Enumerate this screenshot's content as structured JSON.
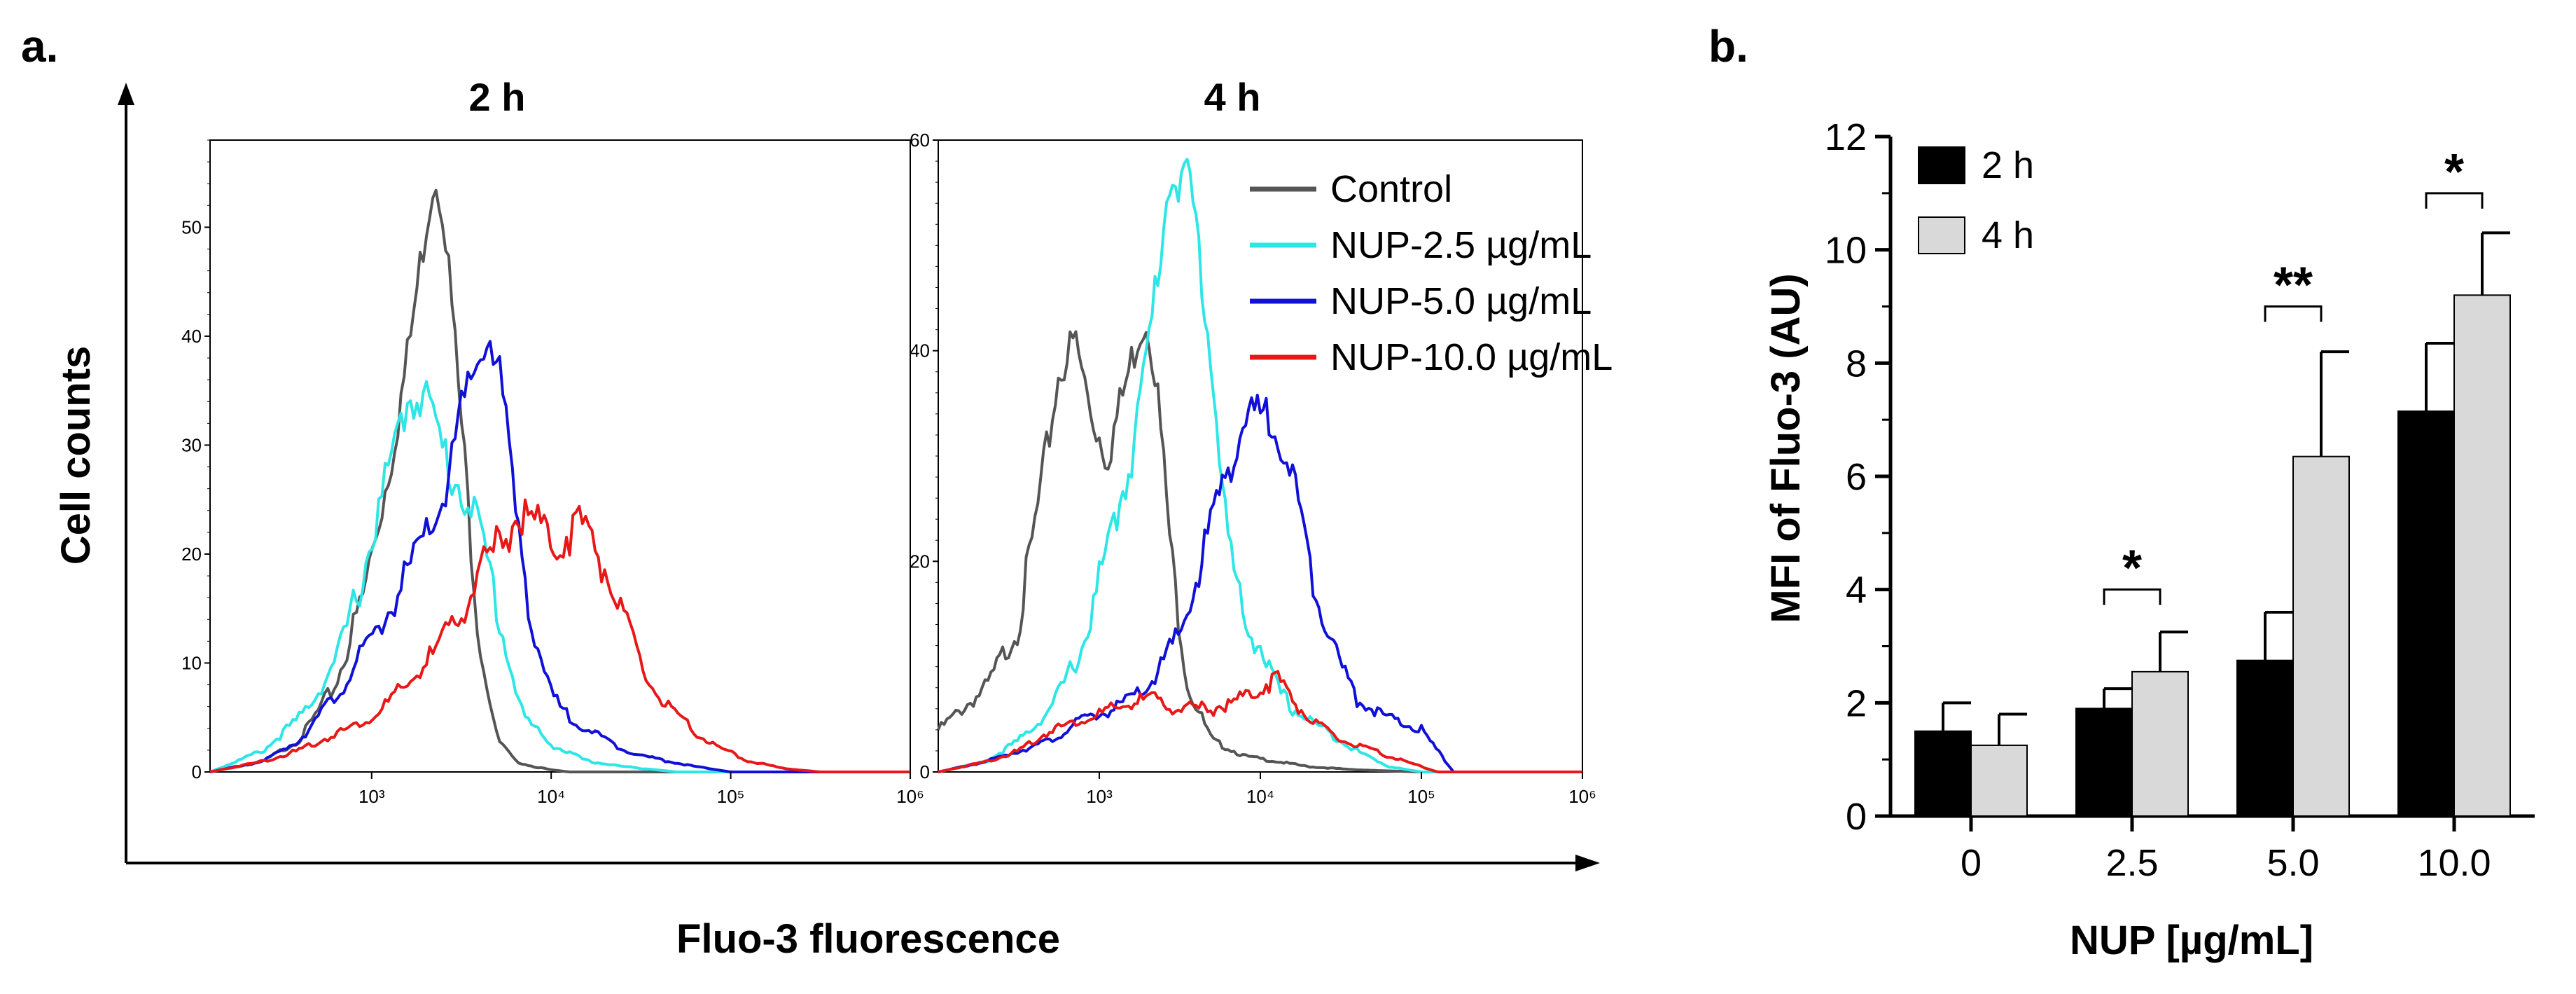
{
  "panel_a": {
    "label": "a.",
    "x_title": "Fluo-3 fluorescence",
    "y_title": "Cell counts",
    "legend": [
      {
        "label": "Control",
        "color": "#555555"
      },
      {
        "label": "NUP-2.5 µg/mL",
        "color": "#2ee6e6"
      },
      {
        "label": "NUP-5.0 µg/mL",
        "color": "#1010d8"
      },
      {
        "label": "NUP-10.0 µg/mL",
        "color": "#e81818"
      }
    ]
  },
  "chart_data": [
    {
      "type": "line",
      "title": "2 h",
      "xlabel": "Fluo-3 fluorescence",
      "ylabel": "Cell counts",
      "xscale": "log",
      "xlim_log10": [
        2.1,
        6.0
      ],
      "ylim": [
        0,
        58
      ],
      "xticks": [
        "10³",
        "10⁴",
        "10⁵",
        "10⁶"
      ],
      "xtick_exp": [
        3,
        4,
        5,
        6
      ],
      "yticks": [
        0,
        10,
        20,
        30,
        40,
        50
      ],
      "series": [
        {
          "name": "Control",
          "color": "#555555",
          "x_log10": [
            2.1,
            2.4,
            2.6,
            2.8,
            2.95,
            3.1,
            3.2,
            3.3,
            3.35,
            3.4,
            3.5,
            3.6,
            3.7,
            3.8,
            3.9,
            4.0,
            4.1,
            4.3,
            4.6,
            5.0,
            6.0
          ],
          "y": [
            0,
            1,
            3,
            8,
            16,
            28,
            38,
            50,
            55,
            52,
            32,
            12,
            3,
            1,
            0.5,
            0.2,
            0,
            0,
            0,
            0,
            0
          ]
        },
        {
          "name": "NUP-2.5 µg/mL",
          "color": "#2ee6e6",
          "x_log10": [
            2.1,
            2.4,
            2.6,
            2.8,
            2.95,
            3.1,
            3.2,
            3.3,
            3.35,
            3.45,
            3.55,
            3.65,
            3.75,
            3.85,
            4.0,
            4.2,
            4.4,
            4.7,
            5.0,
            6.0
          ],
          "y": [
            0,
            2,
            5,
            10,
            18,
            28,
            34,
            35,
            32,
            27,
            25,
            19,
            11,
            5,
            2.5,
            1,
            0.5,
            0,
            0,
            0
          ]
        },
        {
          "name": "NUP-5.0 µg/mL",
          "color": "#1010d8",
          "x_log10": [
            2.1,
            2.4,
            2.6,
            2.8,
            3.0,
            3.2,
            3.4,
            3.5,
            3.6,
            3.65,
            3.7,
            3.75,
            3.8,
            3.9,
            4.0,
            4.1,
            4.2,
            4.35,
            4.5,
            4.8,
            5.0,
            6.0
          ],
          "y": [
            0,
            1,
            3,
            7,
            12,
            18,
            25,
            33,
            38,
            40,
            38,
            32,
            24,
            13,
            7,
            5,
            4,
            2.5,
            1.5,
            0.5,
            0,
            0
          ]
        },
        {
          "name": "NUP-10.0 µg/mL",
          "color": "#e81818",
          "x_log10": [
            2.1,
            2.4,
            2.6,
            2.8,
            3.0,
            3.2,
            3.4,
            3.6,
            3.75,
            3.85,
            3.95,
            4.05,
            4.15,
            4.25,
            4.4,
            4.55,
            4.7,
            4.9,
            5.1,
            5.3,
            5.5,
            6.0
          ],
          "y": [
            0,
            1,
            2,
            3.5,
            5,
            8,
            12,
            18,
            22,
            24,
            22,
            21,
            23,
            21,
            14,
            8,
            5,
            2.5,
            1,
            0.3,
            0,
            0
          ]
        }
      ]
    },
    {
      "type": "line",
      "title": "4 h",
      "xlabel": "Fluo-3 fluorescence",
      "ylabel": "Cell counts",
      "xscale": "log",
      "xlim_log10": [
        2.0,
        6.0
      ],
      "ylim": [
        0,
        60
      ],
      "xticks": [
        "10³",
        "10⁴",
        "10⁵",
        "10⁶"
      ],
      "xtick_exp": [
        3,
        4,
        5,
        6
      ],
      "yticks": [
        0,
        20,
        40,
        60
      ],
      "series": [
        {
          "name": "Control",
          "color": "#555555",
          "x_log10": [
            2.0,
            2.3,
            2.5,
            2.65,
            2.75,
            2.85,
            2.95,
            3.05,
            3.15,
            3.25,
            3.3,
            3.35,
            3.45,
            3.55,
            3.7,
            3.9,
            4.1,
            4.3,
            4.6,
            5.0,
            6.0
          ],
          "y": [
            4,
            8,
            14,
            28,
            38,
            41,
            34,
            30,
            36,
            42,
            43,
            38,
            20,
            8,
            3,
            1.5,
            1,
            0.5,
            0.2,
            0,
            0
          ]
        },
        {
          "name": "NUP-2.5 µg/mL",
          "color": "#2ee6e6",
          "x_log10": [
            2.0,
            2.3,
            2.5,
            2.7,
            2.9,
            3.0,
            3.1,
            3.2,
            3.3,
            3.4,
            3.45,
            3.5,
            3.55,
            3.6,
            3.7,
            3.8,
            3.9,
            4.0,
            4.1,
            4.2,
            4.4,
            4.6,
            4.8,
            5.0,
            6.0
          ],
          "y": [
            0,
            1,
            3,
            6,
            12,
            18,
            24,
            30,
            40,
            52,
            58,
            55,
            57,
            52,
            38,
            22,
            14,
            12,
            8,
            6,
            4,
            2,
            0.5,
            0,
            0
          ]
        },
        {
          "name": "NUP-5.0 µg/mL",
          "color": "#1010d8",
          "x_log10": [
            2.0,
            2.3,
            2.5,
            2.7,
            2.9,
            3.1,
            3.3,
            3.5,
            3.6,
            3.7,
            3.8,
            3.9,
            4.0,
            4.1,
            4.2,
            4.3,
            4.4,
            4.5,
            4.6,
            4.8,
            5.0,
            5.1,
            5.2,
            6.0
          ],
          "y": [
            0,
            1,
            2,
            3,
            5,
            6,
            8,
            13,
            18,
            24,
            29,
            33,
            34,
            33,
            28,
            20,
            15,
            10,
            7,
            5,
            4,
            2,
            0,
            0
          ]
        },
        {
          "name": "NUP-10.0 µg/mL",
          "color": "#e81818",
          "x_log10": [
            2.0,
            2.3,
            2.5,
            2.7,
            2.9,
            3.1,
            3.3,
            3.5,
            3.7,
            3.9,
            4.0,
            4.1,
            4.2,
            4.3,
            4.5,
            4.7,
            4.9,
            5.0,
            5.1,
            6.0
          ],
          "y": [
            0,
            1,
            2,
            4,
            5,
            6,
            7,
            6,
            6,
            7,
            8,
            9,
            7,
            5,
            3,
            2,
            1,
            0.5,
            0,
            0
          ]
        }
      ]
    },
    {
      "type": "bar",
      "label": "b.",
      "categories": [
        "0",
        "2.5",
        "5.0",
        "10.0"
      ],
      "xlabel": "NUP [µg/mL]",
      "ylabel": "MFI of Fluo-3  (AU)",
      "ylim": [
        0,
        12
      ],
      "yticks": [
        0,
        2,
        4,
        6,
        8,
        10,
        12
      ],
      "series": [
        {
          "name": "2 h",
          "color": "#000000",
          "values": [
            1.5,
            1.9,
            2.75,
            7.15
          ],
          "errors": [
            0.5,
            0.35,
            0.85,
            1.2
          ]
        },
        {
          "name": "4 h",
          "color": "#d9d9d9",
          "values": [
            1.25,
            2.55,
            6.35,
            9.2
          ],
          "errors": [
            0.55,
            0.7,
            1.85,
            1.1
          ]
        }
      ],
      "significance": [
        {
          "category": "2.5",
          "text": "*",
          "y": 4.0
        },
        {
          "category": "5.0",
          "text": "**",
          "y": 9.0
        },
        {
          "category": "10.0",
          "text": "*",
          "y": 11.0
        }
      ]
    }
  ]
}
